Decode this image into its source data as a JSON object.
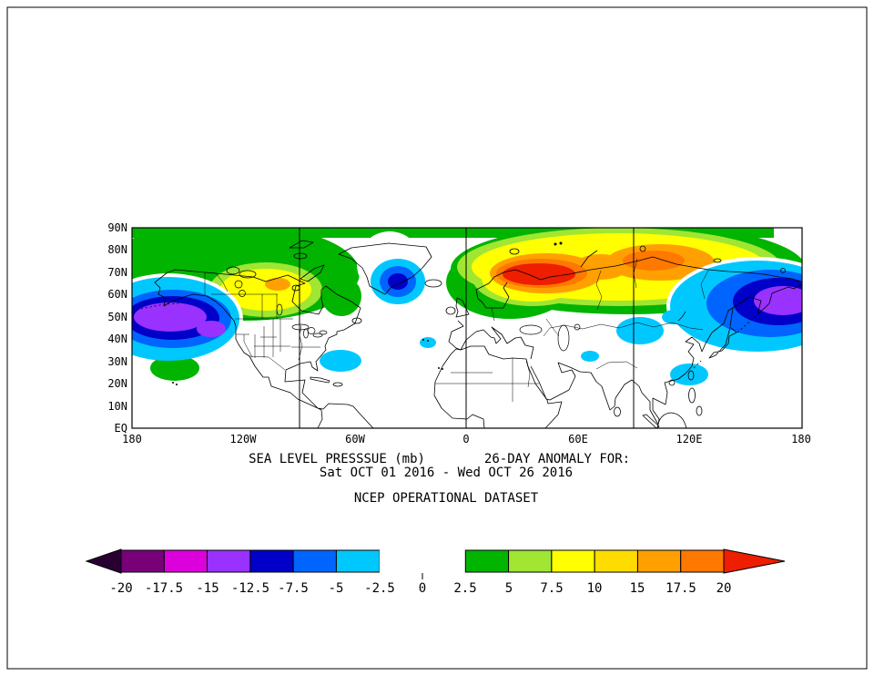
{
  "page": {
    "background": "#ffffff",
    "border": "#000000"
  },
  "titles": {
    "line1_left": "SEA LEVEL PRESSSUE (mb)",
    "line1_right": "26-DAY ANOMALY FOR:",
    "line2": "Sat OCT 01 2016 - Wed OCT 26 2016",
    "line3": "NCEP OPERATIONAL DATASET"
  },
  "axes": {
    "lat_ticks": [
      "90N",
      "80N",
      "70N",
      "60N",
      "50N",
      "40N",
      "30N",
      "20N",
      "10N",
      "EQ"
    ],
    "lon_ticks": [
      "180",
      "120W",
      "60W",
      "0",
      "60E",
      "120E",
      "180"
    ]
  },
  "colorbar": {
    "labels": [
      "-20",
      "-17.5",
      "-15",
      "-12.5",
      "-7.5",
      "-5",
      "-2.5",
      "0",
      "2.5",
      "5",
      "7.5",
      "10",
      "15",
      "17.5",
      "20"
    ],
    "left_arrow_color": "#2a0033",
    "right_arrow_color": "#ee1e00",
    "segments": [
      {
        "color": "#780078",
        "outlined": true
      },
      {
        "color": "#dc00dc",
        "outlined": true
      },
      {
        "color": "#9932ff",
        "outlined": true
      },
      {
        "color": "#0000c8",
        "outlined": true
      },
      {
        "color": "#0064ff",
        "outlined": true
      },
      {
        "color": "#00c8ff",
        "outlined": true
      },
      {
        "color": "#ffffff",
        "outlined": false
      },
      {
        "color": "#ffffff",
        "outlined": false
      },
      {
        "color": "#00b400",
        "outlined": true
      },
      {
        "color": "#a0e632",
        "outlined": true
      },
      {
        "color": "#ffff00",
        "outlined": true
      },
      {
        "color": "#ffdc00",
        "outlined": true
      },
      {
        "color": "#ffa000",
        "outlined": true
      },
      {
        "color": "#ff7800",
        "outlined": true
      }
    ]
  },
  "chart_data": {
    "type": "filled_contour_map",
    "variable": "sea level pressure anomaly",
    "units": "mb",
    "title": "SEA LEVEL PRESSSUE (mb)  26-DAY ANOMALY FOR: Sat OCT 01 2016 - Wed OCT 26 2016",
    "dataset": "NCEP OPERATIONAL DATASET",
    "projection": "equirectangular",
    "lat_range": [
      "EQ",
      "90N"
    ],
    "lon_range": [
      "180W",
      "180E"
    ],
    "lat_tick_interval_deg": 10,
    "meridian_lines_at": [
      "90W",
      "0",
      "90E"
    ],
    "contour_levels_mb": [
      -20,
      -17.5,
      -15,
      -12.5,
      -7.5,
      -5,
      -2.5,
      0,
      2.5,
      5,
      7.5,
      10,
      15,
      17.5,
      20
    ],
    "anomaly_centers": [
      {
        "region": "Gulf of Alaska / North Pacific",
        "approx_lon": "170W",
        "approx_lat": "50N",
        "sign": "negative",
        "peak_mb": -14
      },
      {
        "region": "Subtropical central North Pacific",
        "approx_lon": "170W",
        "approx_lat": "25N",
        "sign": "positive",
        "peak_mb": 4
      },
      {
        "region": "Northern Canada / Canadian Arctic",
        "approx_lon": "95W",
        "approx_lat": "65N",
        "sign": "positive",
        "peak_mb": 9
      },
      {
        "region": "South of Greenland / Iceland",
        "approx_lon": "37W",
        "approx_lat": "64N",
        "sign": "negative",
        "peak_mb": -12
      },
      {
        "region": "Scandinavia / Barents Sea",
        "approx_lon": "35E",
        "approx_lat": "68N",
        "sign": "positive",
        "peak_mb": 19
      },
      {
        "region": "Central Siberia",
        "approx_lon": "100E",
        "approx_lat": "72N",
        "sign": "positive",
        "peak_mb": 14
      },
      {
        "region": "Northwest Pacific / Kamchatka",
        "approx_lon": "170E",
        "approx_lat": "55N",
        "sign": "negative",
        "peak_mb": -15
      },
      {
        "region": "Western subtropical North Atlantic",
        "approx_lon": "65W",
        "approx_lat": "30N",
        "sign": "negative",
        "peak_mb": -4
      },
      {
        "region": "Central Asia / Tibet",
        "approx_lon": "95E",
        "approx_lat": "38N",
        "sign": "negative",
        "peak_mb": -4
      },
      {
        "region": "Southeast Asia",
        "approx_lon": "110E",
        "approx_lat": "18N",
        "sign": "negative",
        "peak_mb": -4
      }
    ]
  }
}
